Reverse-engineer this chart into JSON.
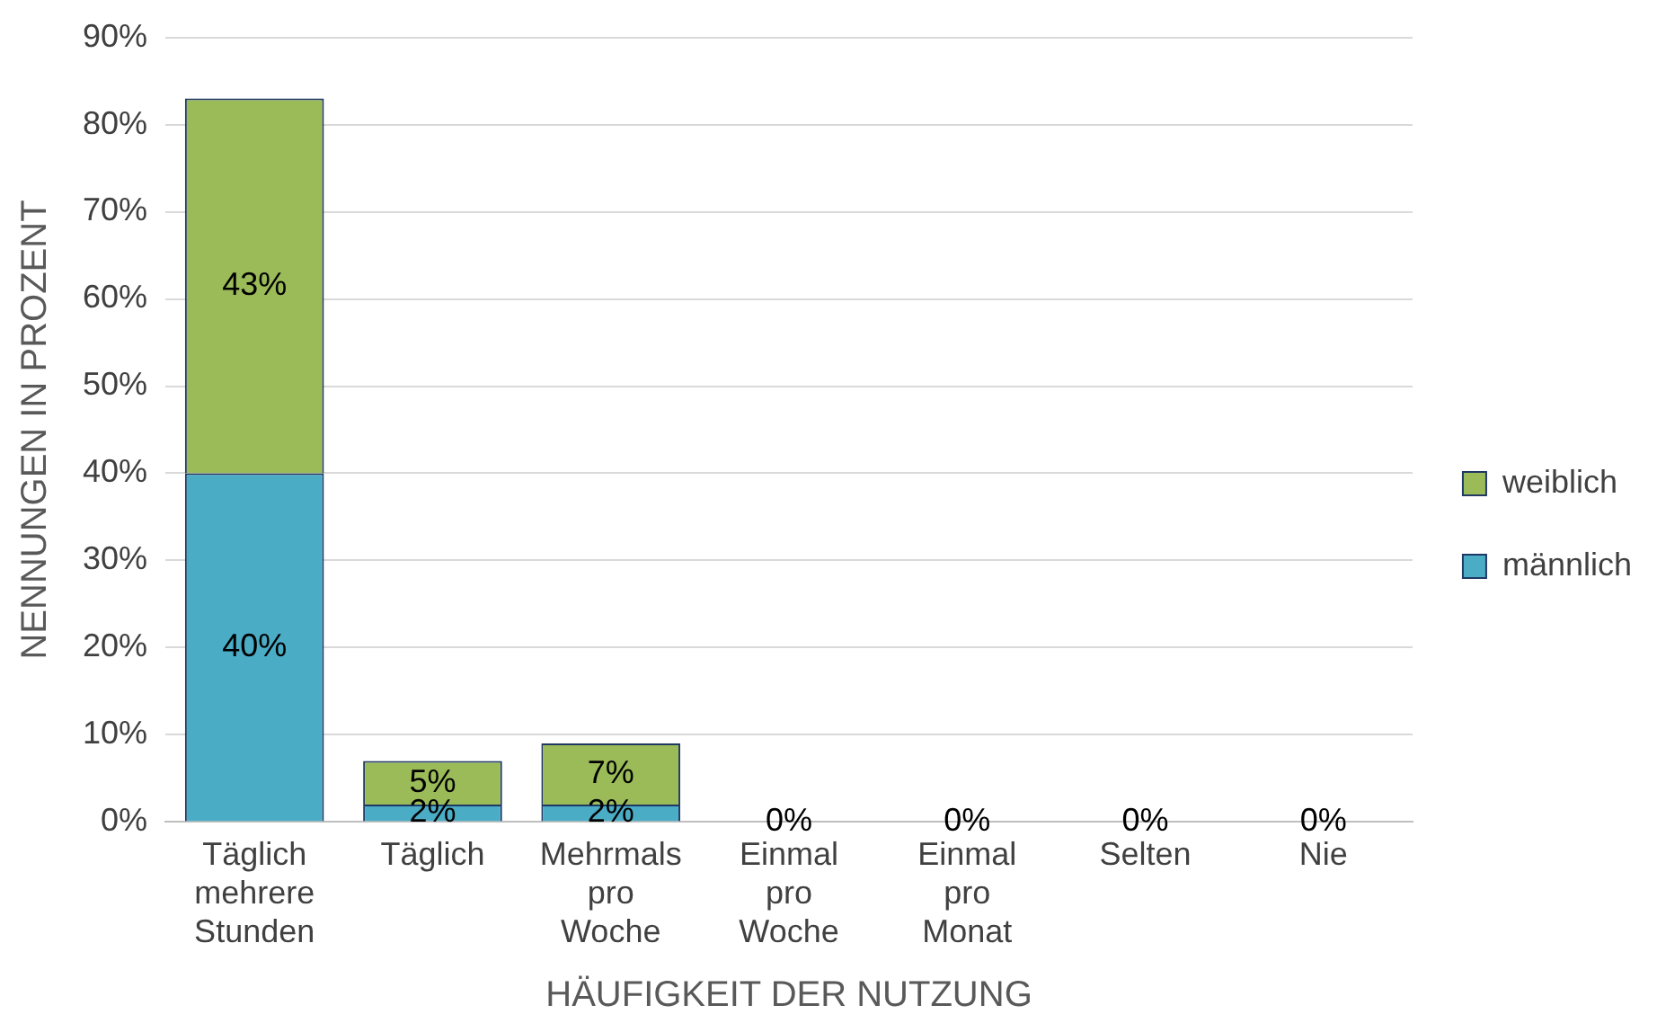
{
  "chart_data": {
    "type": "bar",
    "stacked": true,
    "xlabel": "HÄUFIGKEIT DER NUTZUNG",
    "ylabel": "NENNUNGEN IN PROZENT",
    "categories": [
      "Täglich mehrere Stunden",
      "Täglich",
      "Mehrmals pro Woche",
      "Einmal pro Woche",
      "Einmal pro Monat",
      "Selten",
      "Nie"
    ],
    "series": [
      {
        "name": "männlich",
        "color": "#4bacc6",
        "values": [
          40,
          2,
          2,
          0,
          0,
          0,
          0
        ],
        "value_labels": [
          "40%",
          "2%",
          "2%",
          "0%",
          "0%",
          "0%",
          "0%"
        ]
      },
      {
        "name": "weiblich",
        "color": "#9bbb59",
        "values": [
          43,
          5,
          7,
          0,
          0,
          0,
          0
        ],
        "value_labels": [
          "43%",
          "5%",
          "7%",
          null,
          null,
          null,
          null
        ]
      }
    ],
    "ylim": [
      0,
      90
    ],
    "yticks": [
      {
        "value": 0,
        "label": "0%"
      },
      {
        "value": 10,
        "label": "10%"
      },
      {
        "value": 20,
        "label": "20%"
      },
      {
        "value": 30,
        "label": "30%"
      },
      {
        "value": 40,
        "label": "40%"
      },
      {
        "value": 50,
        "label": "50%"
      },
      {
        "value": 60,
        "label": "60%"
      },
      {
        "value": 70,
        "label": "70%"
      },
      {
        "value": 80,
        "label": "80%"
      },
      {
        "value": 90,
        "label": "90%"
      }
    ],
    "grid": "y",
    "legend": "right"
  }
}
